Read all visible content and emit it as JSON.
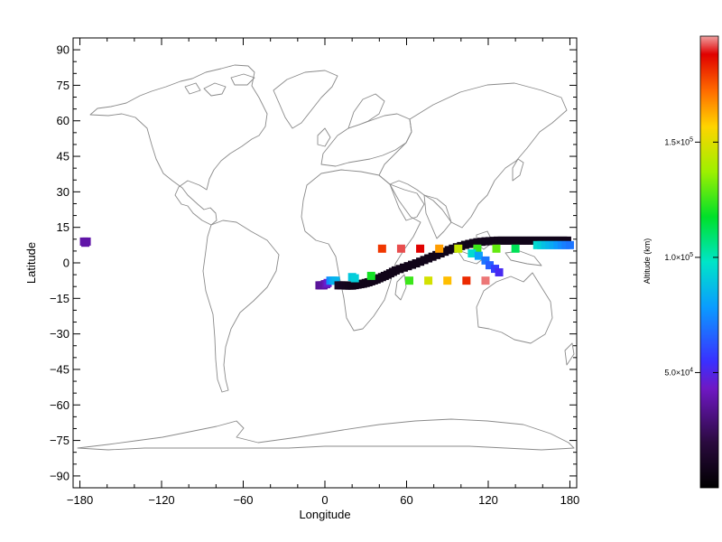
{
  "chart_data": {
    "type": "scatter",
    "xlabel": "Longitude",
    "ylabel": "Latitude",
    "xlim": [
      -185,
      185
    ],
    "ylim": [
      -95,
      95
    ],
    "xticks": [
      -180,
      -120,
      -60,
      0,
      60,
      120,
      180
    ],
    "yticks": [
      90,
      75,
      60,
      45,
      30,
      15,
      0,
      -15,
      -30,
      -45,
      -60,
      -75,
      -90
    ],
    "background_map": "world coastlines",
    "colorbar": {
      "label": "Altitude (km)",
      "colormap": "rainbow",
      "ticks": [
        {
          "value": 150000,
          "label_base": "1.5×10",
          "label_exp": "5"
        },
        {
          "value": 100000,
          "label_base": "1.0×10",
          "label_exp": "5"
        },
        {
          "value": 50000,
          "label_base": "5.0×10",
          "label_exp": "4"
        }
      ],
      "range": [
        0,
        196000
      ]
    },
    "series": [
      {
        "marker": "square",
        "points": [
          [
            -177,
            9,
            38000
          ],
          [
            -176,
            8.5,
            38000
          ],
          [
            -175,
            9,
            38000
          ],
          [
            -4,
            -9.5,
            35000
          ],
          [
            -3,
            -9.5,
            36000
          ],
          [
            -2,
            -9.5,
            36000
          ],
          [
            -1,
            -9.5,
            37000
          ],
          [
            0,
            -9,
            38000
          ],
          [
            1,
            -9,
            40000
          ],
          [
            2,
            -8.5,
            45000
          ],
          [
            4,
            -7.5,
            75000
          ],
          [
            6,
            -7.5,
            82000
          ],
          [
            8,
            -7.5,
            85000
          ],
          [
            10,
            -9.5,
            12000
          ],
          [
            12,
            -9.5,
            11000
          ],
          [
            14,
            -9.5,
            10000
          ],
          [
            16,
            -9.6,
            9500
          ],
          [
            18,
            -9.6,
            9000
          ],
          [
            20,
            -9.6,
            8500
          ],
          [
            22,
            -9.4,
            8000
          ],
          [
            24,
            -9.2,
            8000
          ],
          [
            26,
            -9,
            8000
          ],
          [
            28,
            -8.8,
            8000
          ],
          [
            30,
            -8.5,
            8000
          ],
          [
            32,
            -8.2,
            8000
          ],
          [
            34,
            -7.8,
            8000
          ],
          [
            36,
            -7.4,
            8000
          ],
          [
            38,
            -7,
            8000
          ],
          [
            40,
            -6.5,
            8000
          ],
          [
            42,
            -6,
            8000
          ],
          [
            44,
            -5.5,
            8000
          ],
          [
            46,
            -5,
            8000
          ],
          [
            48,
            -4.4,
            8000
          ],
          [
            50,
            -3.8,
            8000
          ],
          [
            52,
            -3.2,
            8000
          ],
          [
            55,
            -2.6,
            8000
          ],
          [
            58,
            -2,
            8000
          ],
          [
            61,
            -1.4,
            8000
          ],
          [
            64,
            -0.8,
            8000
          ],
          [
            67,
            -0.2,
            8000
          ],
          [
            70,
            0.5,
            8000
          ],
          [
            73,
            1.2,
            8000
          ],
          [
            76,
            1.9,
            8000
          ],
          [
            79,
            2.6,
            8000
          ],
          [
            82,
            3.3,
            8000
          ],
          [
            85,
            4,
            8000
          ],
          [
            88,
            4.7,
            8000
          ],
          [
            91,
            5.4,
            8000
          ],
          [
            94,
            6,
            8000
          ],
          [
            97,
            6.6,
            8000
          ],
          [
            100,
            7.1,
            8000
          ],
          [
            103,
            7.6,
            8000
          ],
          [
            106,
            8,
            8000
          ],
          [
            109,
            8.4,
            8000
          ],
          [
            112,
            8.7,
            8000
          ],
          [
            115,
            8.9,
            8000
          ],
          [
            118,
            9.1,
            8000
          ],
          [
            121,
            9.2,
            8000
          ],
          [
            124,
            9.3,
            8000
          ],
          [
            127,
            9.4,
            8000
          ],
          [
            130,
            9.4,
            8000
          ],
          [
            133,
            9.4,
            8000
          ],
          [
            136,
            9.4,
            8000
          ],
          [
            139,
            9.4,
            8000
          ],
          [
            142,
            9.4,
            8000
          ],
          [
            145,
            9.4,
            8000
          ],
          [
            148,
            9.4,
            8000
          ],
          [
            151,
            9.4,
            8000
          ],
          [
            154,
            9.4,
            8000
          ],
          [
            157,
            9.4,
            8000
          ],
          [
            160,
            9.4,
            8000
          ],
          [
            163,
            9.4,
            8000
          ],
          [
            166,
            9.4,
            8000
          ],
          [
            169,
            9.4,
            8000
          ],
          [
            172,
            9.4,
            8000
          ],
          [
            175,
            9.4,
            8000
          ],
          [
            178,
            9.4,
            8000
          ],
          [
            20,
            -6,
            90000
          ],
          [
            22,
            -6.5,
            92000
          ],
          [
            34,
            -5.5,
            120000
          ],
          [
            42,
            6,
            180000
          ],
          [
            56,
            6,
            192000
          ],
          [
            70,
            6,
            188000
          ],
          [
            84,
            6,
            165000
          ],
          [
            98,
            6,
            145000
          ],
          [
            112,
            6,
            125000
          ],
          [
            126,
            6,
            130000
          ],
          [
            140,
            6,
            112000
          ],
          [
            62,
            -7.5,
            125000
          ],
          [
            76,
            -7.5,
            148000
          ],
          [
            90,
            -7.5,
            160000
          ],
          [
            104,
            -7.5,
            182000
          ],
          [
            118,
            -7.5,
            194000
          ],
          [
            108,
            4,
            95000
          ],
          [
            113,
            3,
            80000
          ],
          [
            118,
            1,
            70000
          ],
          [
            121,
            -1,
            65000
          ],
          [
            125,
            -2.5,
            58000
          ],
          [
            128,
            -4,
            52000
          ],
          [
            156,
            7.5,
            95000
          ],
          [
            159,
            7.5,
            92000
          ],
          [
            162,
            7.5,
            88000
          ],
          [
            165,
            7.5,
            85000
          ],
          [
            168,
            7.5,
            82000
          ],
          [
            171,
            7.5,
            78000
          ],
          [
            174,
            7.5,
            75000
          ],
          [
            177,
            7.5,
            72000
          ],
          [
            180,
            7.5,
            70000
          ]
        ]
      }
    ],
    "grid": false,
    "legend": "colorbar-right"
  }
}
